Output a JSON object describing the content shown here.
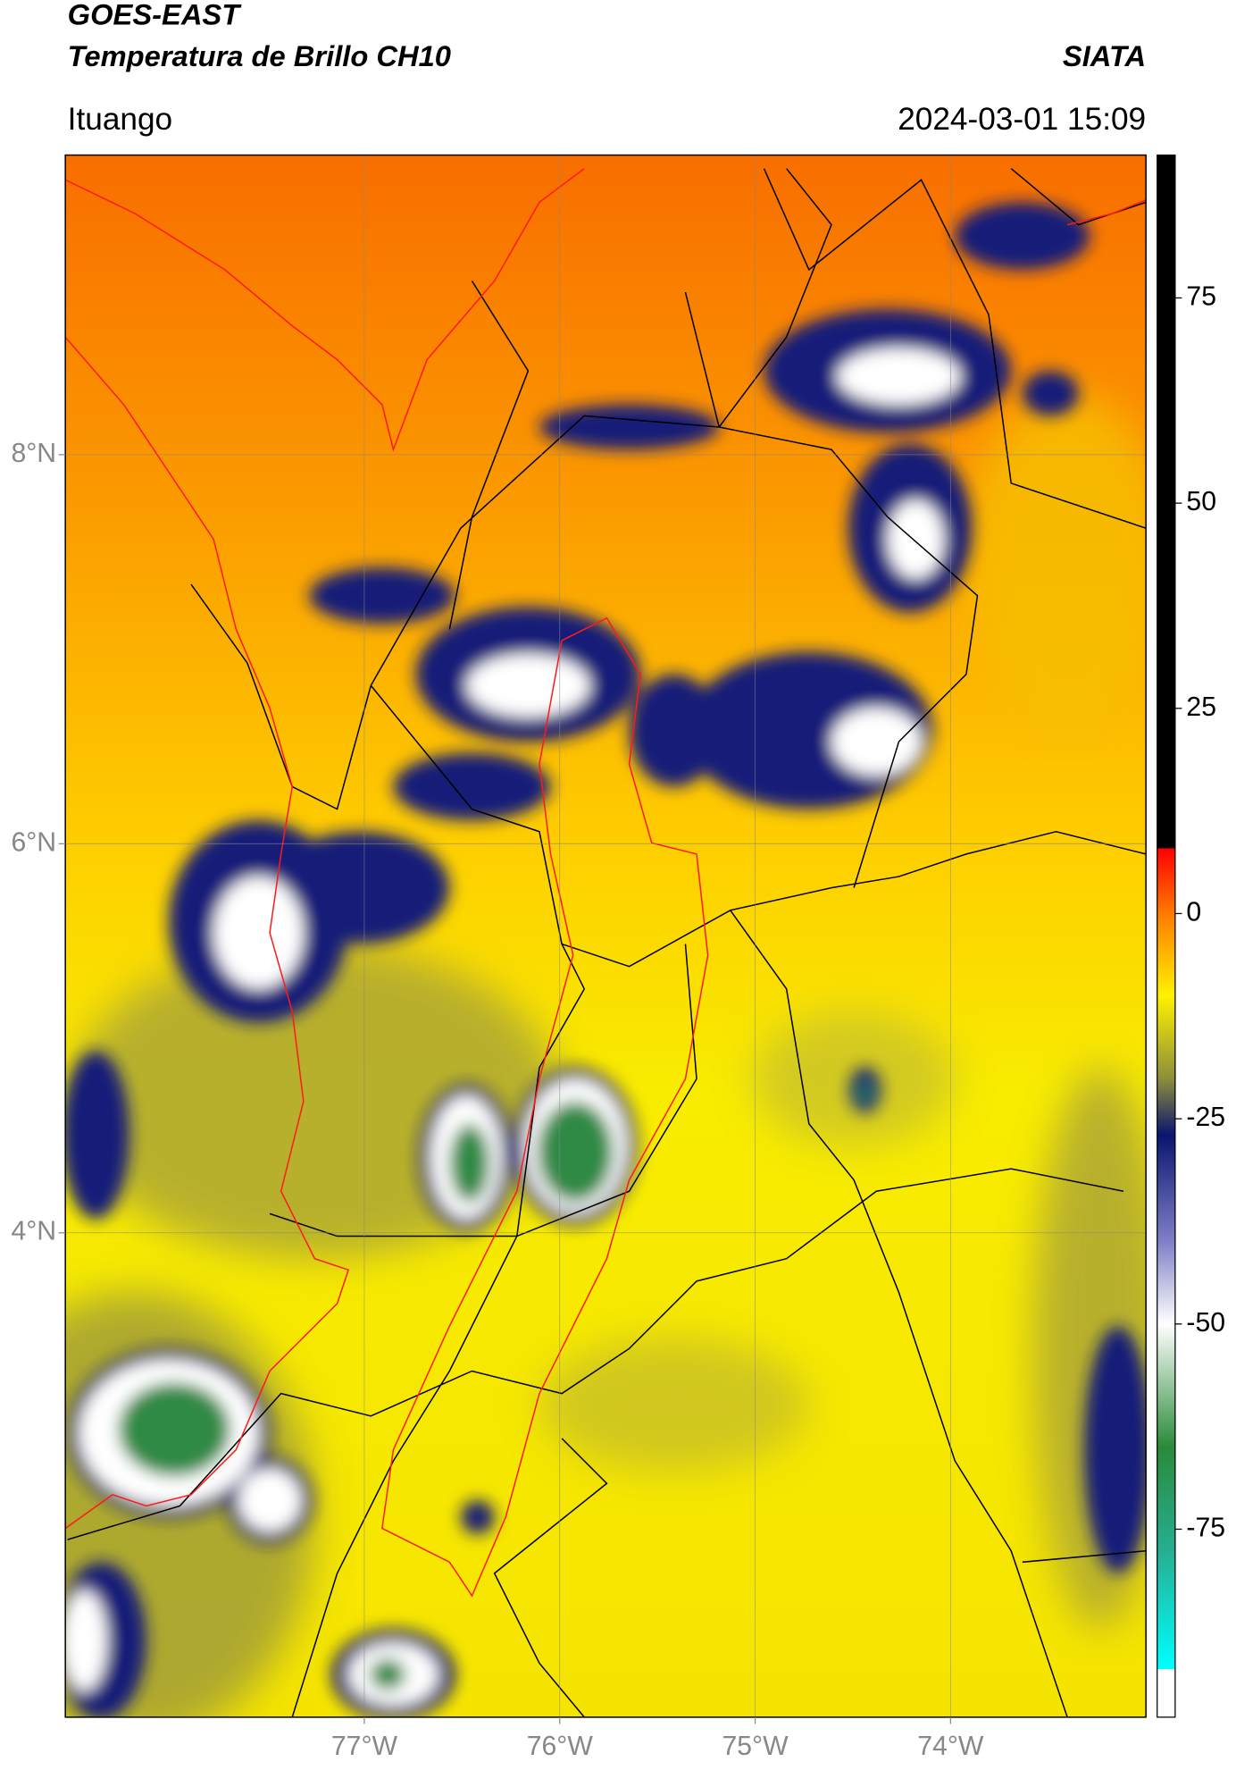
{
  "header": {
    "title": "GOES-EAST",
    "subtitle": "Temperatura de Brillo CH10",
    "brand": "SIATA",
    "location": "Ituango",
    "datetime": "2024-03-01 15:09"
  },
  "map": {
    "lonlim": [
      -78.53,
      -73.0
    ],
    "latlim": [
      1.51,
      9.54
    ],
    "lonticks": [
      {
        "value": -77,
        "label": "77°W"
      },
      {
        "value": -76,
        "label": "76°W"
      },
      {
        "value": -75,
        "label": "75°W"
      },
      {
        "value": -74,
        "label": "74°W"
      }
    ],
    "latticks": [
      {
        "value": 8,
        "label": "8°N"
      },
      {
        "value": 6,
        "label": "6°N"
      },
      {
        "value": 4,
        "label": "4°N"
      }
    ],
    "grid": true
  },
  "colorbar": {
    "lim": [
      -97.9,
      92.4
    ],
    "ticks": [
      75,
      50,
      25,
      0,
      -25,
      -50,
      -75
    ],
    "colormap": [
      {
        "value": 92.4,
        "color": "#000000"
      },
      {
        "value": 8,
        "color": "#000000"
      },
      {
        "value": 7.9,
        "color": "#ff0000"
      },
      {
        "value": 0,
        "color": "#ff7a00"
      },
      {
        "value": -10,
        "color": "#fff200"
      },
      {
        "value": -20,
        "color": "#8f8f3a"
      },
      {
        "value": -27,
        "color": "#0a1570"
      },
      {
        "value": -40,
        "color": "#8080c8"
      },
      {
        "value": -50,
        "color": "#ffffff"
      },
      {
        "value": -65,
        "color": "#2a8a3a"
      },
      {
        "value": -78,
        "color": "#25b095"
      },
      {
        "value": -92,
        "color": "#00ffff"
      },
      {
        "value": -92.1,
        "color": "#ffffff"
      },
      {
        "value": -97.9,
        "color": "#ffffff"
      }
    ]
  }
}
